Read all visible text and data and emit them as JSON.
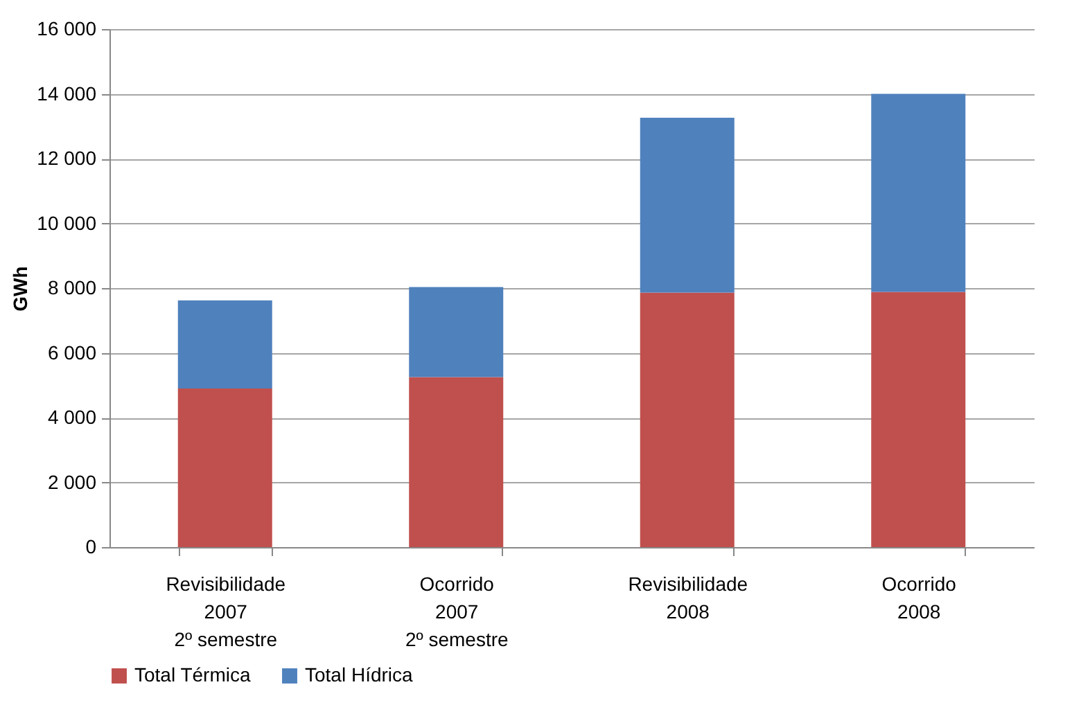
{
  "chart_data": {
    "type": "bar",
    "stacked": true,
    "ylabel": "GWh",
    "categories": [
      "Revisibilidade\n2007\n2º semestre",
      "Ocorrido\n2007\n2º semestre",
      "Revisibilidade\n2008",
      "Ocorrido\n2008"
    ],
    "series": [
      {
        "name": "Total Térmica",
        "color": "#c0504d",
        "values": [
          4900,
          5250,
          7860,
          7880
        ]
      },
      {
        "name": "Total Hídrica",
        "color": "#4f81bd",
        "values": [
          2720,
          2780,
          5400,
          6120
        ]
      }
    ],
    "ylim": [
      0,
      16000
    ],
    "yticks": [
      0,
      {
        "value": 2000,
        "label": "2 000"
      },
      {
        "value": 4000,
        "label": "4 000"
      },
      {
        "value": 6000,
        "label": "6 000"
      },
      {
        "value": 8000,
        "label": "8 000"
      },
      {
        "value": 10000,
        "label": "10 000"
      },
      {
        "value": 12000,
        "label": "12 000"
      },
      {
        "value": 14000,
        "label": "14 000"
      },
      {
        "value": 16000,
        "label": "16 000"
      }
    ],
    "grid": "y",
    "legend": "bottom"
  }
}
